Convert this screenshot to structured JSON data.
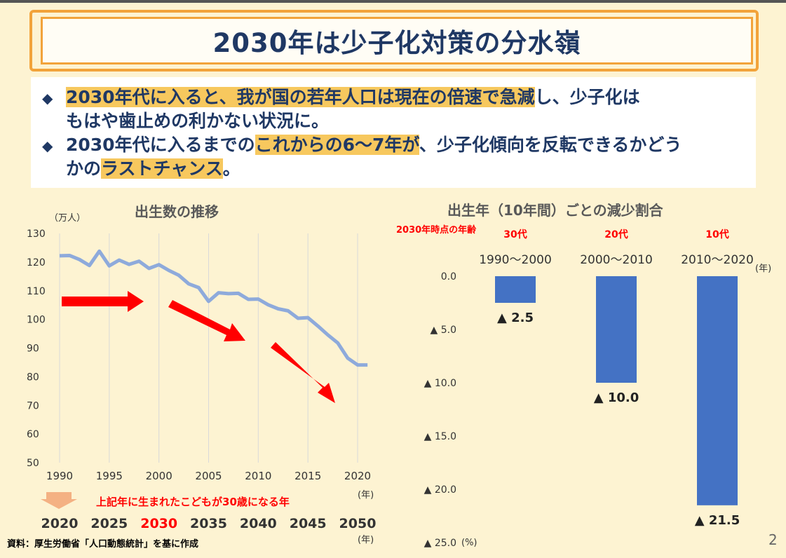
{
  "title": "2030年は少子化対策の分水嶺",
  "bullets": [
    {
      "line1_hl": "2030年代に入ると、我が国の若年人口は現在の倍速で急減",
      "line1_rest": "し、少子化は",
      "line2": "もはや歯止めの利かない状況に。"
    },
    {
      "line1_pre": "2030年代に入るまでの",
      "line1_hl": "これからの6～7年が",
      "line1_rest": "、少子化傾向を反転できるかどう",
      "line2_pre": "かの",
      "line2_hl": "ラストチャンス",
      "line2_rest": "。"
    }
  ],
  "left_chart": {
    "title": "出生数の推移",
    "unit": "（万人）",
    "year_unit": "(年)",
    "arrow_note": "上記年に生まれたこどもが30歳になる年",
    "age30_years": [
      "2020",
      "2025",
      "2030",
      "2035",
      "2040",
      "2045",
      "2050"
    ],
    "highlight_year": "2030"
  },
  "right_chart": {
    "title": "出生年（10年間）ごとの減少割合",
    "age_header": "2030年時点の年齢",
    "year_unit": "(年)",
    "pct_unit": "(%)"
  },
  "footer": "資料：厚生労働省「人口動態統計」を基に作成",
  "page_number": "2",
  "colors": {
    "line": "#8eaadb",
    "bar": "#4472c4",
    "arrow": "#ff0000",
    "title": "#1f3864",
    "highlight": "#f7c85e"
  },
  "chart_data": [
    {
      "type": "line",
      "title": "出生数の推移",
      "ylabel": "（万人）",
      "xlabel": "(年)",
      "ylim": [
        50,
        130
      ],
      "yticks": [
        130,
        120,
        110,
        100,
        90,
        80,
        70,
        60,
        50
      ],
      "xticks": [
        1990,
        1995,
        2000,
        2005,
        2010,
        2015,
        2020
      ],
      "series": [
        {
          "name": "出生数",
          "x": [
            1990,
            1991,
            1992,
            1993,
            1994,
            1995,
            1996,
            1997,
            1998,
            1999,
            2000,
            2001,
            2002,
            2003,
            2004,
            2005,
            2006,
            2007,
            2008,
            2009,
            2010,
            2011,
            2012,
            2013,
            2014,
            2015,
            2016,
            2017,
            2018,
            2019,
            2020,
            2021
          ],
          "values": [
            122.2,
            122.3,
            120.9,
            118.8,
            123.8,
            118.7,
            120.7,
            119.2,
            120.3,
            117.8,
            119.1,
            117.1,
            115.4,
            112.4,
            111.1,
            106.3,
            109.3,
            109.0,
            109.1,
            107.0,
            107.1,
            105.1,
            103.7,
            103.0,
            100.4,
            100.6,
            97.7,
            94.6,
            91.8,
            86.5,
            84.1,
            84.1
          ]
        }
      ]
    },
    {
      "type": "bar",
      "title": "出生年（10年間）ごとの減少割合",
      "categories": [
        "1990～2000",
        "2000～2010",
        "2010～2020"
      ],
      "age_labels": [
        "30代",
        "20代",
        "10代"
      ],
      "values": [
        -2.5,
        -10.0,
        -21.5
      ],
      "value_labels": [
        "▲ 2.5",
        "▲ 10.0",
        "▲ 21.5"
      ],
      "ylim": [
        0,
        -25
      ],
      "ytick_values": [
        0,
        -5,
        -10,
        -15,
        -20,
        -25
      ],
      "ytick_labels": [
        "0.0",
        "▲ 5.0",
        "▲ 10.0",
        "▲ 15.0",
        "▲ 20.0",
        "▲ 25.0"
      ],
      "ylabel": "(%)"
    }
  ]
}
